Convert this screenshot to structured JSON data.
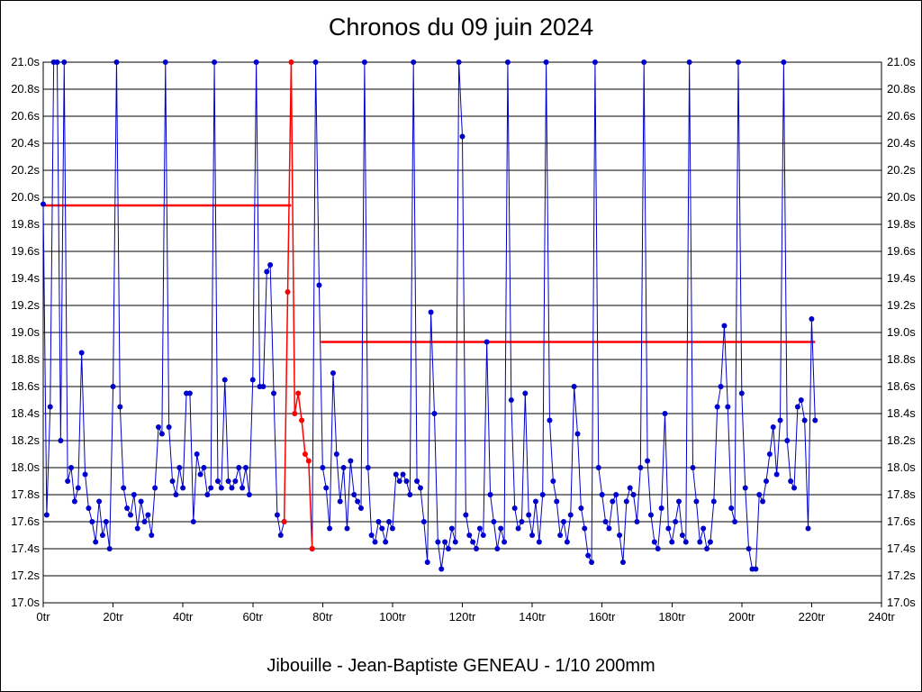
{
  "chart_data": {
    "type": "line",
    "title": "Chronos du 09 juin 2024",
    "subtitle": "Jibouille - Jean-Baptiste GENEAU - 1/10 200mm",
    "x_unit": "tr",
    "y_unit": "s",
    "xlim": [
      0,
      240
    ],
    "ylim": [
      17.0,
      21.0
    ],
    "xtick_step": 20,
    "ytick_step": 0.2,
    "grid": "horizontal",
    "grid_color": "#000000",
    "plot_border_color": "#000000",
    "xtick_labels": [
      "0tr",
      "20tr",
      "40tr",
      "60tr",
      "80tr",
      "100tr",
      "120tr",
      "140tr",
      "160tr",
      "180tr",
      "200tr",
      "220tr",
      "240tr"
    ],
    "ytick_labels": [
      "21.0s",
      "20.8s",
      "20.6s",
      "20.4s",
      "20.2s",
      "20.0s",
      "19.8s",
      "19.6s",
      "19.4s",
      "19.2s",
      "19.0s",
      "18.8s",
      "18.6s",
      "18.4s",
      "18.2s",
      "18.0s",
      "17.8s",
      "17.6s",
      "17.4s",
      "17.2s",
      "17.0s"
    ],
    "series": [
      {
        "name": "chronos-bleu",
        "color": "#0000cc",
        "segments": [
          {
            "x_start": 0,
            "y": [
              19.95,
              17.65,
              18.45,
              21.0,
              21.0,
              18.2,
              21.0,
              17.9,
              18.0,
              17.75,
              17.85,
              18.85,
              17.95,
              17.7,
              17.6,
              17.45,
              17.75,
              17.5,
              17.6,
              17.4,
              18.6,
              21.0,
              18.45,
              17.85,
              17.7,
              17.65,
              17.8,
              17.55,
              17.75,
              17.6,
              17.65,
              17.5,
              17.85,
              18.3,
              18.25,
              21.0,
              18.3,
              17.9,
              17.8,
              18.0,
              17.85,
              18.55,
              18.55,
              17.6,
              18.1,
              17.95,
              18.0,
              17.8,
              17.85,
              21.0,
              17.9,
              17.85,
              18.65,
              17.9,
              17.85,
              17.9,
              18.0,
              17.85,
              18.0,
              17.8,
              18.65,
              21.0,
              18.6,
              18.6,
              19.45,
              19.5,
              18.55,
              17.65,
              17.5,
              17.6
            ]
          },
          {
            "x_start": 77,
            "y": [
              17.4,
              21.0,
              19.35,
              18.0,
              17.85,
              17.55,
              18.7,
              18.1,
              17.75,
              18.0,
              17.55,
              18.05,
              17.8,
              17.75,
              17.7,
              21.0,
              18.0,
              17.5,
              17.45,
              17.6,
              17.55,
              17.45,
              17.6,
              17.55,
              17.95,
              17.9,
              17.95,
              17.9,
              17.8,
              21.0,
              17.9,
              17.85,
              17.6,
              17.3,
              19.15,
              18.4,
              17.45,
              17.25,
              17.45,
              17.4,
              17.55,
              17.45,
              21.0,
              20.45,
              17.65,
              17.5,
              17.45,
              17.4,
              17.55,
              17.5,
              18.93,
              17.8,
              17.6,
              17.4,
              17.55,
              17.45,
              21.0,
              18.5,
              17.7,
              17.55,
              17.6,
              18.55,
              17.65,
              17.5,
              17.75,
              17.45,
              17.8,
              21.0,
              18.35,
              17.9,
              17.75,
              17.5,
              17.6,
              17.45,
              17.65,
              18.6,
              18.25,
              17.7,
              17.55,
              17.35,
              17.3,
              21.0,
              18.0,
              17.8,
              17.6,
              17.55,
              17.75,
              17.8,
              17.5,
              17.3,
              17.75,
              17.85,
              17.8,
              17.6,
              18.0,
              21.0,
              18.05,
              17.65,
              17.45,
              17.4,
              17.7,
              18.4,
              17.55,
              17.45,
              17.6,
              17.75,
              17.5,
              17.45,
              21.0,
              18.0,
              17.75,
              17.45,
              17.55,
              17.4,
              17.45,
              17.75,
              18.45,
              18.6,
              19.05,
              18.45,
              17.7,
              17.6,
              21.0,
              18.55,
              17.85,
              17.4,
              17.25,
              17.25,
              17.8,
              17.75,
              17.9,
              18.1,
              18.3,
              17.95,
              18.35,
              21.0,
              18.2,
              17.9,
              17.85,
              18.45,
              18.5,
              18.35,
              17.55,
              19.1,
              18.35
            ]
          }
        ]
      },
      {
        "name": "chronos-rouge",
        "color": "#ff0000",
        "segments": [
          {
            "x_start": 69,
            "y": [
              17.6,
              19.3,
              21.0,
              18.4,
              18.55,
              18.35,
              18.1,
              18.05,
              17.4
            ]
          }
        ]
      }
    ],
    "reference_lines": [
      {
        "name": "moyenne-1",
        "y": 19.94,
        "x1": 0,
        "x2": 71,
        "color": "#ff0000"
      },
      {
        "name": "moyenne-2",
        "y": 18.93,
        "x1": 79.5,
        "x2": 221,
        "color": "#ff0000"
      }
    ]
  }
}
